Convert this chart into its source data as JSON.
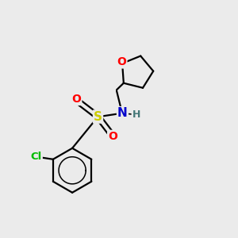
{
  "bg_color": "#ebebeb",
  "atom_colors": {
    "C": "#000000",
    "N": "#0000cc",
    "O": "#ff0000",
    "S": "#cccc00",
    "Cl": "#00bb00",
    "H": "#447777"
  },
  "bond_color": "#000000",
  "bond_width": 1.6,
  "font_size_large": 10,
  "font_size_small": 8.5,
  "figsize": [
    3.0,
    3.0
  ],
  "dpi": 100
}
